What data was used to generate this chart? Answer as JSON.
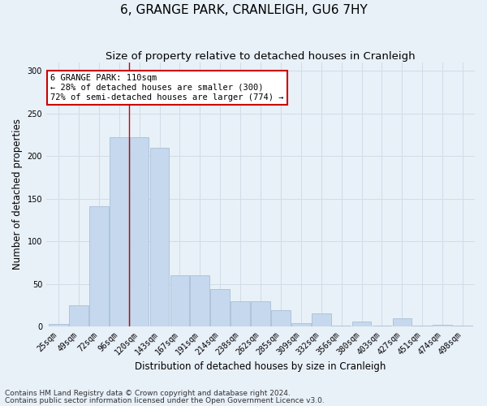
{
  "title": "6, GRANGE PARK, CRANLEIGH, GU6 7HY",
  "subtitle": "Size of property relative to detached houses in Cranleigh",
  "xlabel": "Distribution of detached houses by size in Cranleigh",
  "ylabel": "Number of detached properties",
  "bar_labels": [
    "25sqm",
    "49sqm",
    "72sqm",
    "96sqm",
    "120sqm",
    "143sqm",
    "167sqm",
    "191sqm",
    "214sqm",
    "238sqm",
    "262sqm",
    "285sqm",
    "309sqm",
    "332sqm",
    "356sqm",
    "380sqm",
    "403sqm",
    "427sqm",
    "451sqm",
    "474sqm",
    "498sqm"
  ],
  "bar_values": [
    3,
    25,
    141,
    222,
    222,
    210,
    60,
    60,
    44,
    30,
    30,
    19,
    4,
    15,
    1,
    6,
    1,
    10,
    1,
    2,
    1
  ],
  "bar_color": "#c5d8ed",
  "bar_edge_color": "#a0b8d0",
  "grid_color": "#d0dce8",
  "bg_color": "#e8f0f8",
  "annotation_text": "6 GRANGE PARK: 110sqm\n← 28% of detached houses are smaller (300)\n72% of semi-detached houses are larger (774) →",
  "annotation_box_color": "#ffffff",
  "annotation_box_edge_color": "#cc0000",
  "footnote1": "Contains HM Land Registry data © Crown copyright and database right 2024.",
  "footnote2": "Contains public sector information licensed under the Open Government Licence v3.0.",
  "ylim": [
    0,
    310
  ],
  "yticks": [
    0,
    50,
    100,
    150,
    200,
    250,
    300
  ],
  "title_fontsize": 11,
  "subtitle_fontsize": 9.5,
  "axis_label_fontsize": 8.5,
  "tick_fontsize": 7,
  "annotation_fontsize": 7.5,
  "footnote_fontsize": 6.5
}
